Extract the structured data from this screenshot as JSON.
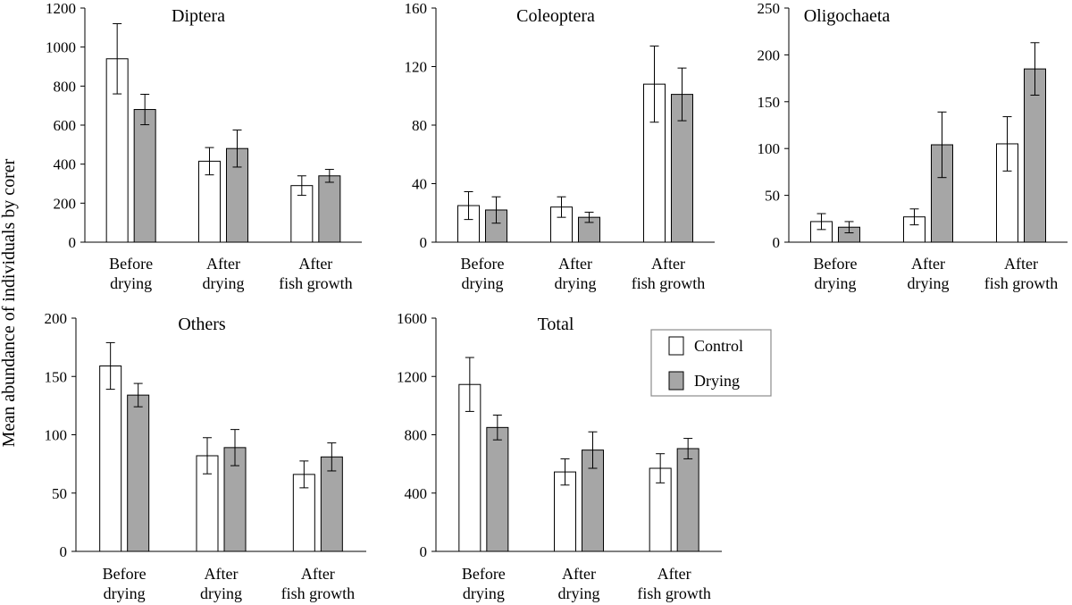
{
  "chart_data": {
    "type": "bar",
    "ylabel": "Mean abundance of individuals by corer",
    "categories": [
      "Before drying",
      "After drying",
      "After fish growth"
    ],
    "category_lines": [
      [
        "Before",
        "drying"
      ],
      [
        "After",
        "drying"
      ],
      [
        "After",
        "fish growth"
      ]
    ],
    "legend": {
      "position": "right-of-total",
      "entries": [
        {
          "name": "Control",
          "color": "#ffffff"
        },
        {
          "name": "Drying",
          "color": "#a6a6a6"
        }
      ]
    },
    "panels": [
      {
        "title": "Diptera",
        "ylim": [
          0,
          1200
        ],
        "yticks": [
          "0",
          "200",
          "400",
          "600",
          "800",
          "1000",
          "1200"
        ],
        "series": [
          {
            "name": "Control",
            "values": [
              940,
              415,
              290
            ],
            "errors": [
              180,
              70,
              50
            ]
          },
          {
            "name": "Drying",
            "values": [
              680,
              480,
              340
            ],
            "errors": [
              78,
              95,
              33
            ]
          }
        ]
      },
      {
        "title": "Coleoptera",
        "ylim": [
          0,
          160
        ],
        "yticks": [
          "0",
          "40",
          "80",
          "120",
          "160"
        ],
        "series": [
          {
            "name": "Control",
            "values": [
              25,
              24,
              108
            ],
            "errors": [
              9.5,
              7,
              26
            ]
          },
          {
            "name": "Drying",
            "values": [
              22,
              17,
              101
            ],
            "errors": [
              9,
              3.5,
              18
            ]
          }
        ]
      },
      {
        "title": "Oligochaeta",
        "ylim": [
          0,
          250
        ],
        "yticks": [
          "0",
          "50",
          "100",
          "150",
          "200",
          "250"
        ],
        "series": [
          {
            "name": "Control",
            "values": [
              22,
              27,
              105
            ],
            "errors": [
              8.5,
              8.5,
              29
            ]
          },
          {
            "name": "Drying",
            "values": [
              16,
              104,
              185
            ],
            "errors": [
              6,
              35,
              28
            ]
          }
        ]
      },
      {
        "title": "Others",
        "ylim": [
          0,
          200
        ],
        "yticks": [
          "0",
          "50",
          "100",
          "150",
          "200"
        ],
        "series": [
          {
            "name": "Control",
            "values": [
              159,
              82,
              66
            ],
            "errors": [
              20,
              15.5,
              11.5
            ]
          },
          {
            "name": "Drying",
            "values": [
              134,
              89,
              81
            ],
            "errors": [
              10,
              15.5,
              12
            ]
          }
        ]
      },
      {
        "title": "Total",
        "ylim": [
          0,
          1600
        ],
        "yticks": [
          "0",
          "400",
          "800",
          "1200",
          "1600"
        ],
        "series": [
          {
            "name": "Control",
            "values": [
              1145,
              545,
              570
            ],
            "errors": [
              185,
              90,
              100
            ]
          },
          {
            "name": "Drying",
            "values": [
              850,
              695,
              705
            ],
            "errors": [
              85,
              125,
              70
            ]
          }
        ]
      }
    ]
  }
}
